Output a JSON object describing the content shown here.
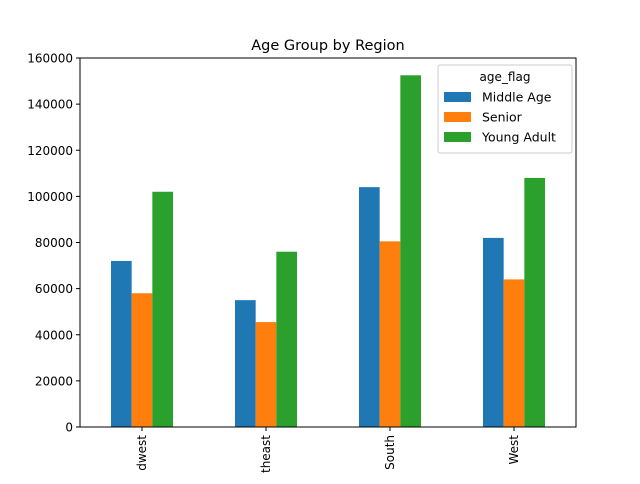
{
  "chart_data": {
    "type": "bar",
    "title": "Age Group by Region",
    "xlabel": "",
    "ylabel": "",
    "categories": [
      "Midwest",
      "Northeast",
      "South",
      "West"
    ],
    "tick_labels_visible": [
      "dwest",
      "theast",
      "South",
      "West"
    ],
    "series": [
      {
        "name": "Middle Age",
        "color": "#1f77b4",
        "values": [
          72000,
          55000,
          104000,
          82000
        ]
      },
      {
        "name": "Senior",
        "color": "#ff7f0e",
        "values": [
          58000,
          45500,
          80500,
          64000
        ]
      },
      {
        "name": "Young Adult",
        "color": "#2ca02c",
        "values": [
          102000,
          76000,
          152500,
          108000
        ]
      }
    ],
    "ylim": [
      0,
      160000
    ],
    "yticks": [
      0,
      20000,
      40000,
      60000,
      80000,
      100000,
      120000,
      140000,
      160000
    ],
    "grid": false,
    "legend": {
      "title": "age_flag",
      "placement": "top-right"
    }
  }
}
